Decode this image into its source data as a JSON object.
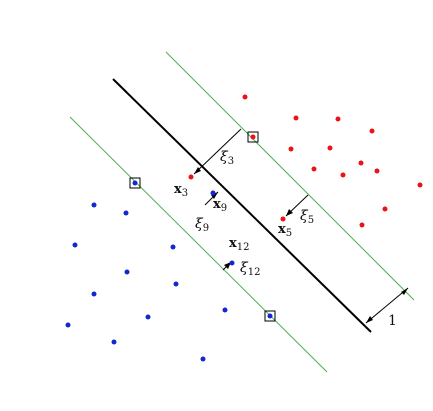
{
  "colors": {
    "positive": "#e8141a",
    "negative": "#1428d2",
    "margin_line": "#4caf50",
    "boundary": "#000000",
    "arrow": "#000000"
  },
  "labels": {
    "x3": {
      "base": "x",
      "sub": "3"
    },
    "x9": {
      "base": "x",
      "sub": "9"
    },
    "x12": {
      "base": "x",
      "sub": "12"
    },
    "x5": {
      "base": "x",
      "sub": "5"
    },
    "xi3": {
      "base": "ξ",
      "sub": "3"
    },
    "xi5": {
      "base": "ξ",
      "sub": "5"
    },
    "xi9": {
      "base": "ξ",
      "sub": "9"
    },
    "xi12": {
      "base": "ξ",
      "sub": "12"
    },
    "margin_width": "1"
  },
  "legend_items": {
    "support_vector_marker": "square",
    "slack_marker": "arrow"
  }
}
